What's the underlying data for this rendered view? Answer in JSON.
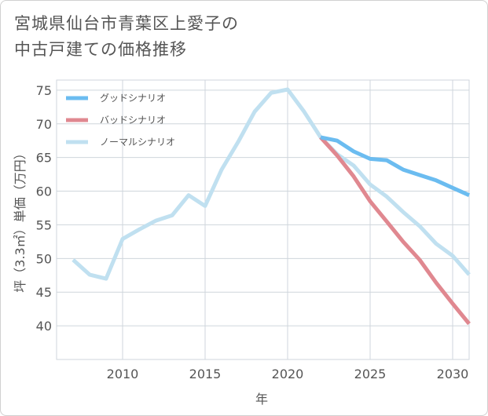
{
  "chart_data": {
    "type": "line",
    "title_lines": [
      "宮城県仙台市青葉区上愛子の",
      "中古戸建ての価格推移"
    ],
    "xlabel": "年",
    "ylabel": "坪（3.3㎡）単価（万円）",
    "xlim": [
      2006,
      2031
    ],
    "ylim": [
      35,
      76.5
    ],
    "x_ticks": [
      2010,
      2015,
      2020,
      2025,
      2030
    ],
    "y_ticks": [
      40,
      45,
      50,
      55,
      60,
      65,
      70,
      75
    ],
    "grid": true,
    "legend_position": "top-left",
    "series": [
      {
        "name": "グッドシナリオ",
        "color": "#6bbcf0",
        "x": [
          2022,
          2023,
          2024,
          2025,
          2026,
          2027,
          2028,
          2029,
          2030,
          2031
        ],
        "values": [
          68.0,
          67.5,
          65.9,
          64.8,
          64.6,
          63.2,
          62.4,
          61.6,
          60.5,
          59.4
        ]
      },
      {
        "name": "バッドシナリオ",
        "color": "#e08890",
        "x": [
          2022,
          2023,
          2024,
          2025,
          2026,
          2027,
          2028,
          2029,
          2030,
          2031
        ],
        "values": [
          68.0,
          65.3,
          62.2,
          58.5,
          55.5,
          52.5,
          49.8,
          46.4,
          43.3,
          40.3
        ]
      },
      {
        "name": "ノーマルシナリオ",
        "color": "#c0e0f0",
        "x": [
          2007,
          2008,
          2009,
          2010,
          2011,
          2012,
          2013,
          2014,
          2015,
          2016,
          2017,
          2018,
          2019,
          2020,
          2021,
          2022,
          2023,
          2024,
          2025,
          2026,
          2027,
          2028,
          2029,
          2030,
          2031
        ],
        "values": [
          49.8,
          47.6,
          47.0,
          52.9,
          54.3,
          55.6,
          56.4,
          59.4,
          57.8,
          63.2,
          67.3,
          71.8,
          74.6,
          75.1,
          71.8,
          68.0,
          65.5,
          63.8,
          61.0,
          59.2,
          56.9,
          54.8,
          52.2,
          50.4,
          47.6
        ]
      }
    ]
  }
}
